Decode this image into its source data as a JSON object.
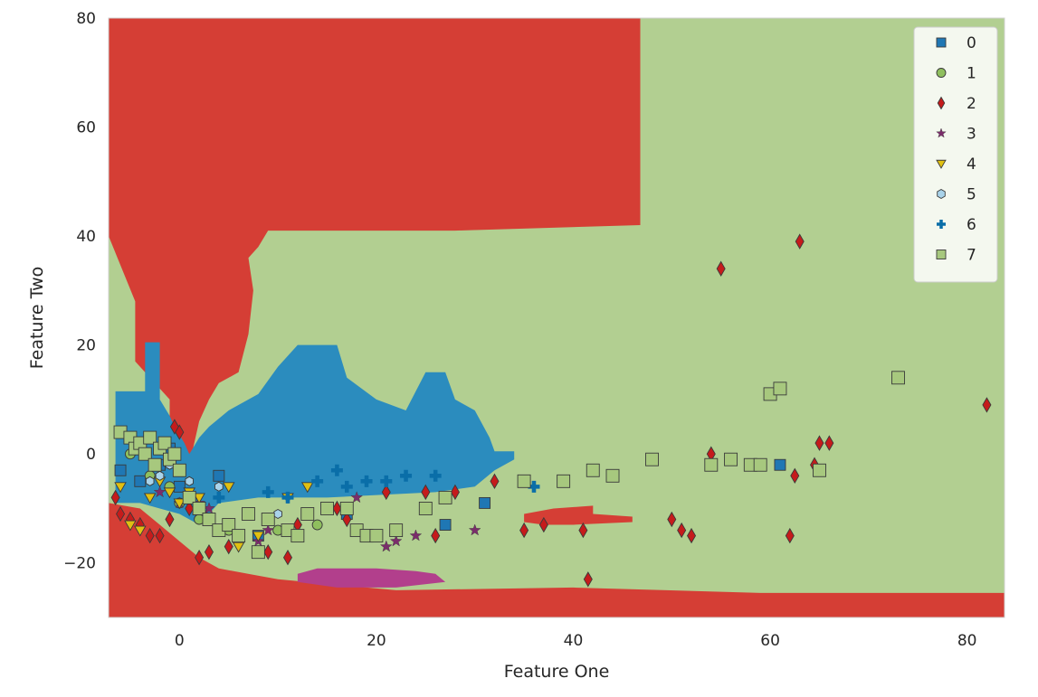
{
  "chart_data": {
    "type": "scatter",
    "title": "",
    "xlabel": "Feature One",
    "ylabel": "Feature Two",
    "xlim": [
      -7.2,
      83.8
    ],
    "ylim": [
      -30,
      80
    ],
    "xticks": [
      0,
      20,
      40,
      60,
      80
    ],
    "yticks": [
      -20,
      0,
      20,
      40,
      60,
      80
    ],
    "grid": false,
    "legend_position": "top-right",
    "background_class": "1",
    "region_colors": {
      "0": "#2b8cbe",
      "1": "#b2cf91",
      "2": "#d53e35",
      "3": "#b23f8c",
      "7": "#b2cf91"
    },
    "decision_regions": [
      {
        "class": "2",
        "points": [
          [
            -7.2,
            -30
          ],
          [
            83.8,
            -30
          ],
          [
            83.8,
            -25.5
          ],
          [
            59,
            -25.5
          ],
          [
            40,
            -24.5
          ],
          [
            22,
            -25
          ],
          [
            10,
            -23
          ],
          [
            4,
            -21
          ],
          [
            2,
            -19
          ],
          [
            0,
            -16
          ],
          [
            -2,
            -13
          ],
          [
            -4,
            -10
          ],
          [
            -7.2,
            -9
          ]
        ]
      },
      {
        "class": "2",
        "points": [
          [
            -7.2,
            80
          ],
          [
            46.8,
            80
          ],
          [
            46.8,
            42
          ],
          [
            28,
            41
          ],
          [
            16,
            41
          ],
          [
            9,
            41
          ],
          [
            8,
            38
          ],
          [
            7,
            36
          ],
          [
            7.5,
            30
          ],
          [
            7,
            22
          ],
          [
            6,
            15
          ],
          [
            4,
            13
          ],
          [
            3,
            10
          ],
          [
            2,
            6
          ],
          [
            1,
            -2
          ],
          [
            -1,
            -3
          ],
          [
            -1,
            2
          ],
          [
            -1,
            10
          ],
          [
            -3,
            14
          ],
          [
            -4.5,
            17
          ],
          [
            -4.5,
            28
          ],
          [
            -7.2,
            40
          ]
        ]
      },
      {
        "class": "0",
        "points": [
          [
            -6.5,
            11.5
          ],
          [
            -3.5,
            11.5
          ],
          [
            -3.5,
            20.5
          ],
          [
            -2,
            20.5
          ],
          [
            -2,
            10
          ],
          [
            -1,
            7
          ],
          [
            -0.5,
            5
          ],
          [
            0.5,
            2
          ],
          [
            1,
            0
          ],
          [
            2,
            3
          ],
          [
            3,
            5
          ],
          [
            5,
            8
          ],
          [
            8,
            11
          ],
          [
            10,
            16
          ],
          [
            12,
            20
          ],
          [
            16,
            20
          ],
          [
            17,
            14
          ],
          [
            20,
            10
          ],
          [
            23,
            8
          ],
          [
            25,
            15
          ],
          [
            27,
            15
          ],
          [
            28,
            10
          ],
          [
            30,
            8
          ],
          [
            31.5,
            3
          ],
          [
            32,
            0.5
          ],
          [
            34,
            0.5
          ],
          [
            34,
            -1
          ],
          [
            32,
            -3
          ],
          [
            30,
            -6
          ],
          [
            26,
            -7
          ],
          [
            15,
            -8
          ],
          [
            8,
            -8
          ],
          [
            4,
            -9
          ],
          [
            2,
            -13
          ],
          [
            0,
            -11
          ],
          [
            -2,
            -10
          ],
          [
            -4,
            -9
          ],
          [
            -6.5,
            -9
          ],
          [
            -6.5,
            0
          ]
        ]
      },
      {
        "class": "3",
        "points": [
          [
            12,
            -22
          ],
          [
            14,
            -21
          ],
          [
            20,
            -21
          ],
          [
            24,
            -21.5
          ],
          [
            26,
            -22
          ],
          [
            27,
            -23.5
          ],
          [
            22,
            -24.5
          ],
          [
            16,
            -24.5
          ],
          [
            12,
            -23.5
          ]
        ]
      },
      {
        "class": "2",
        "points": [
          [
            35,
            -11
          ],
          [
            38,
            -10
          ],
          [
            42,
            -9.5
          ],
          [
            42,
            -11
          ],
          [
            46,
            -11.5
          ],
          [
            46,
            -12.5
          ],
          [
            40,
            -13
          ],
          [
            37,
            -13
          ],
          [
            35,
            -12.5
          ]
        ]
      }
    ],
    "legend": [
      "0",
      "1",
      "2",
      "3",
      "4",
      "5",
      "6",
      "7"
    ],
    "series": [
      {
        "name": "0",
        "marker": "square",
        "color": "#1f77b4",
        "x": [
          -6,
          -4,
          -2,
          -1,
          0,
          4,
          8,
          13,
          17,
          27,
          31,
          61
        ],
        "y": [
          -3,
          -5,
          -2,
          1,
          -6,
          -4,
          -15,
          -11,
          -11,
          -13,
          -9,
          -2
        ]
      },
      {
        "name": "1",
        "marker": "circle",
        "color": "#8fbf5e",
        "x": [
          -5,
          -3,
          -1,
          0,
          2,
          5,
          10,
          14
        ],
        "y": [
          0,
          -4,
          -6,
          -9,
          -12,
          -14,
          -14,
          -13
        ]
      },
      {
        "name": "2",
        "marker": "diamond",
        "color": "#c51b1b",
        "x": [
          -6.5,
          -6,
          -5,
          -4,
          -3,
          -2,
          -1,
          -0.5,
          0,
          1,
          2,
          3,
          5,
          6,
          9,
          11,
          12,
          16,
          17,
          21,
          25,
          26,
          28,
          32,
          35,
          37,
          41,
          41.5,
          50,
          51,
          52,
          54,
          55,
          62,
          62.5,
          63,
          64.5,
          65,
          66,
          82
        ],
        "y": [
          -8,
          -11,
          -12,
          -13,
          -15,
          -15,
          -12,
          5,
          4,
          -10,
          -19,
          -18,
          -17,
          -16,
          -18,
          -19,
          -13,
          -10,
          -12,
          -7,
          -7,
          -15,
          -7,
          -5,
          -14,
          -13,
          -14,
          -23,
          -12,
          -14,
          -15,
          0,
          34,
          -15,
          -4,
          39,
          -2,
          2,
          2,
          9
        ]
      },
      {
        "name": "3",
        "marker": "star",
        "color": "#7b2d6b",
        "x": [
          -2,
          0,
          2,
          3,
          8,
          9,
          18,
          21,
          22,
          24,
          30
        ],
        "y": [
          -7,
          -9,
          -9,
          -10,
          -16,
          -14,
          -8,
          -17,
          -16,
          -15,
          -14
        ]
      },
      {
        "name": "4",
        "marker": "triangle",
        "color": "#e0c012",
        "x": [
          -6,
          -5,
          -4,
          -3,
          -2,
          -1,
          0,
          1,
          2,
          5,
          6,
          8,
          11,
          13
        ],
        "y": [
          -6,
          -13,
          -14,
          -8,
          -5,
          -7,
          -9,
          -7,
          -8,
          -6,
          -17,
          -15,
          -8,
          -6
        ]
      },
      {
        "name": "5",
        "marker": "hexagon",
        "color": "#a9d3ea",
        "x": [
          -3,
          -2,
          -1,
          1,
          4,
          10
        ],
        "y": [
          -5,
          -4,
          -2,
          -5,
          -6,
          -11
        ]
      },
      {
        "name": "6",
        "marker": "plus",
        "color": "#0a6ea8",
        "x": [
          4,
          9,
          11,
          14,
          16,
          17,
          19,
          21,
          23,
          26,
          36
        ],
        "y": [
          -8,
          -7,
          -8,
          -5,
          -3,
          -6,
          -5,
          -5,
          -4,
          -4,
          -6
        ]
      },
      {
        "name": "7",
        "marker": "square",
        "color": "#a7c87e",
        "x": [
          -6,
          -5,
          -4.5,
          -4,
          -3.5,
          -3,
          -2.5,
          -2,
          -1.5,
          -1,
          -0.5,
          0,
          1,
          2,
          3,
          4,
          5,
          6,
          7,
          8,
          9,
          11,
          12,
          13,
          15,
          17,
          18,
          19,
          20,
          22,
          25,
          27,
          35,
          39,
          42,
          44,
          48,
          54,
          56,
          58,
          59,
          60,
          61,
          65,
          73
        ],
        "y": [
          4,
          3,
          1,
          2,
          0,
          3,
          -2,
          1,
          2,
          -1,
          0,
          -3,
          -8,
          -10,
          -12,
          -14,
          -13,
          -15,
          -11,
          -18,
          -12,
          -14,
          -15,
          -11,
          -10,
          -10,
          -14,
          -15,
          -15,
          -14,
          -10,
          -8,
          -5,
          -5,
          -3,
          -4,
          -1,
          -2,
          -1,
          -2,
          -2,
          11,
          12,
          -3,
          14
        ]
      }
    ]
  }
}
